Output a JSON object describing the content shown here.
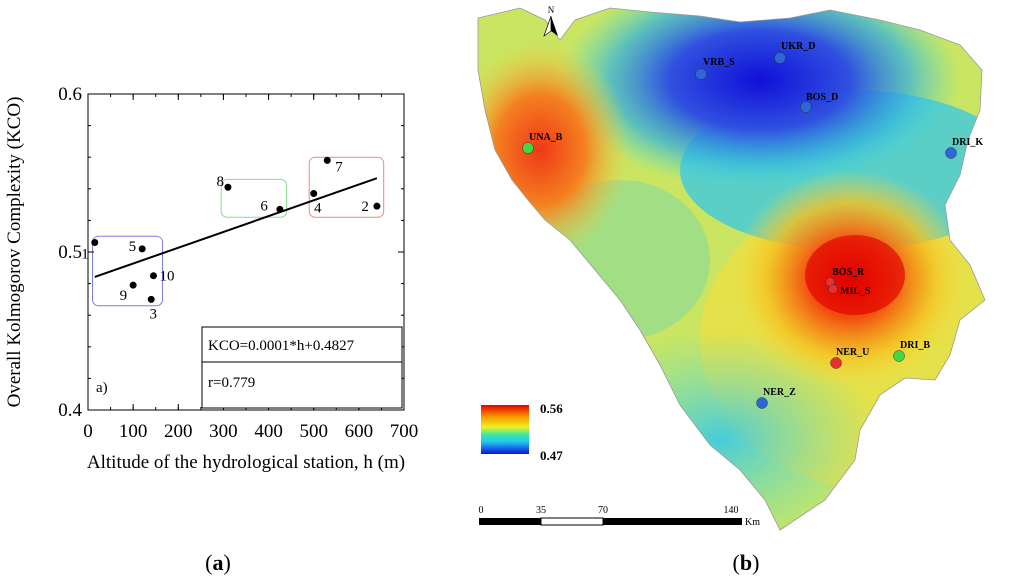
{
  "panel_a_caption": "a",
  "panel_b_caption": "b",
  "chart_data": [
    {
      "type": "scatter",
      "title": "",
      "xlabel": "Altitude of the hydrological station, h (m)",
      "ylabel": "Overall Kolmogorov Complexity (KCO)",
      "xlim": [
        0,
        700
      ],
      "ylim": [
        0.4,
        0.6
      ],
      "xticks": [
        0,
        100,
        200,
        300,
        400,
        500,
        600,
        700
      ],
      "yticks": [
        0.4,
        0.5,
        0.6
      ],
      "grid": false,
      "panel_label": "a)",
      "points": [
        {
          "label": "1",
          "x": 15,
          "y": 0.506
        },
        {
          "label": "2",
          "x": 640,
          "y": 0.529
        },
        {
          "label": "3",
          "x": 140,
          "y": 0.47
        },
        {
          "label": "4",
          "x": 500,
          "y": 0.537
        },
        {
          "label": "5",
          "x": 120,
          "y": 0.502
        },
        {
          "label": "6",
          "x": 425,
          "y": 0.527
        },
        {
          "label": "7",
          "x": 530,
          "y": 0.558
        },
        {
          "label": "8",
          "x": 310,
          "y": 0.541
        },
        {
          "label": "9",
          "x": 100,
          "y": 0.479
        },
        {
          "label": "10",
          "x": 145,
          "y": 0.485
        }
      ],
      "regression": {
        "slope": 0.0001,
        "intercept": 0.4827,
        "x_range": [
          15,
          640
        ]
      },
      "equation_text": "KCO=0.0001*h+0.4827",
      "r_text": "r=0.779",
      "group_boxes": [
        {
          "color": "#7f7fd8",
          "x": [
            10,
            165
          ],
          "y": [
            0.466,
            0.51
          ]
        },
        {
          "color": "#8fd88f",
          "x": [
            295,
            440
          ],
          "y": [
            0.522,
            0.546
          ]
        },
        {
          "color": "#e88a80",
          "x": [
            490,
            655
          ],
          "y": [
            0.522,
            0.56
          ]
        }
      ]
    },
    {
      "type": "map",
      "north_label": "N",
      "stations": [
        {
          "name": "UKR_D",
          "color": "#2c66d8"
        },
        {
          "name": "VRB_S",
          "color": "#2c66d8"
        },
        {
          "name": "BOS_D",
          "color": "#2c66d8"
        },
        {
          "name": "UNA_B",
          "color": "#44d844"
        },
        {
          "name": "DRI_K",
          "color": "#2c66d8"
        },
        {
          "name": "BOS_R",
          "color": "#e83030"
        },
        {
          "name": "MIL_S",
          "color": "#e83030"
        },
        {
          "name": "NER_U",
          "color": "#e83030"
        },
        {
          "name": "DRI_B",
          "color": "#44d844"
        },
        {
          "name": "NER_Z",
          "color": "#2c66d8"
        }
      ],
      "legend": {
        "max_label": "0.56",
        "min_label": "0.47"
      },
      "scalebar": {
        "ticks": [
          "0",
          "35",
          "70",
          "140"
        ],
        "unit": "Km"
      }
    }
  ]
}
